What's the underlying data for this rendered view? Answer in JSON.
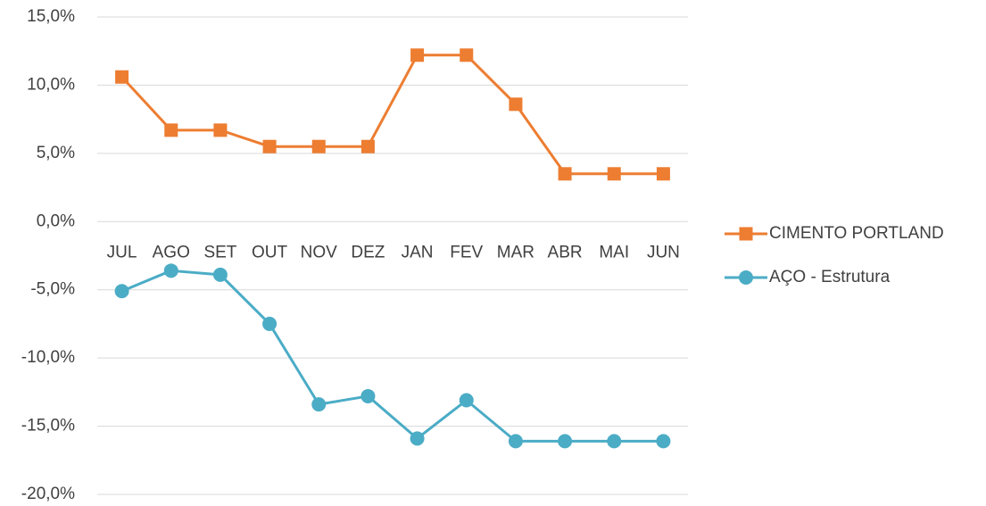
{
  "chart_data": {
    "type": "line",
    "categories": [
      "JUL",
      "AGO",
      "SET",
      "OUT",
      "NOV",
      "DEZ",
      "JAN",
      "FEV",
      "MAR",
      "ABR",
      "MAI",
      "JUN"
    ],
    "series": [
      {
        "name": "CIMENTO PORTLAND",
        "color": "#ed7d31",
        "marker": "square",
        "values": [
          10.6,
          6.7,
          6.7,
          5.5,
          5.5,
          5.5,
          12.2,
          12.2,
          8.6,
          3.5,
          3.5,
          3.5
        ]
      },
      {
        "name": "AÇO - Estrutura",
        "color": "#4bacc6",
        "marker": "circle",
        "values": [
          -5.1,
          -3.6,
          -3.9,
          -7.5,
          -13.4,
          -12.8,
          -15.9,
          -13.1,
          -16.1,
          -16.1,
          -16.1,
          -16.1
        ]
      }
    ],
    "ylim": [
      -20,
      15
    ],
    "yticks": [
      {
        "value": 15,
        "label": "15,0%"
      },
      {
        "value": 10,
        "label": "10,0%"
      },
      {
        "value": 5,
        "label": "5,0%"
      },
      {
        "value": 0,
        "label": "0,0%"
      },
      {
        "value": -5,
        "label": "-5,0%"
      },
      {
        "value": -10,
        "label": "-10,0%"
      },
      {
        "value": -15,
        "label": "-15,0%"
      },
      {
        "value": -20,
        "label": "-20,0%"
      }
    ],
    "grid": true,
    "legend": "right"
  }
}
